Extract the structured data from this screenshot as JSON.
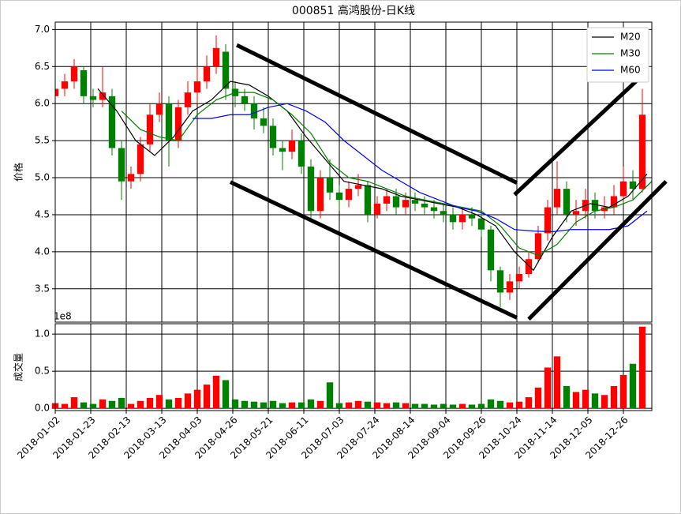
{
  "chart_data": {
    "type": "candlestick",
    "title": "000851 高鸿股份-日K线",
    "ylabel": "价格",
    "up_color": "#ff0000",
    "down_color": "#008000",
    "grid": true,
    "legend": "upper right",
    "xlim": [
      0,
      252
    ],
    "xticks": [
      {
        "value": 0,
        "label": "2018-01-02"
      },
      {
        "value": 15,
        "label": "2018-01-23"
      },
      {
        "value": 30,
        "label": "2018-02-13"
      },
      {
        "value": 45,
        "label": "2018-03-13"
      },
      {
        "value": 60,
        "label": "2018-04-03"
      },
      {
        "value": 75,
        "label": "2018-04-26"
      },
      {
        "value": 90,
        "label": "2018-05-21"
      },
      {
        "value": 105,
        "label": "2018-06-11"
      },
      {
        "value": 120,
        "label": "2018-07-03"
      },
      {
        "value": 135,
        "label": "2018-07-24"
      },
      {
        "value": 150,
        "label": "2018-08-14"
      },
      {
        "value": 165,
        "label": "2018-09-04"
      },
      {
        "value": 180,
        "label": "2018-09-26"
      },
      {
        "value": 195,
        "label": "2018-10-24"
      },
      {
        "value": 210,
        "label": "2018-11-14"
      },
      {
        "value": 225,
        "label": "2018-12-05"
      },
      {
        "value": 240,
        "label": "2018-12-26"
      }
    ],
    "ylim": [
      3.05,
      7.1
    ],
    "yticks": [
      3.5,
      {
        "value": 4,
        "label": "4.0"
      },
      4.5,
      {
        "value": 5,
        "label": "5.0"
      },
      5.5,
      {
        "value": 6,
        "label": "6.0"
      },
      6.5,
      {
        "value": 7,
        "label": "7.0"
      }
    ],
    "x": [
      0,
      4,
      8,
      12,
      16,
      20,
      24,
      28,
      32,
      36,
      40,
      44,
      48,
      52,
      56,
      60,
      64,
      68,
      72,
      76,
      80,
      84,
      88,
      92,
      96,
      100,
      104,
      108,
      112,
      116,
      120,
      124,
      128,
      132,
      136,
      140,
      144,
      148,
      152,
      156,
      160,
      164,
      168,
      172,
      176,
      180,
      184,
      188,
      192,
      196,
      200,
      204,
      208,
      212,
      216,
      220,
      224,
      228,
      232,
      236,
      240,
      244,
      248
    ],
    "open": [
      6.1,
      6.2,
      6.3,
      6.45,
      6.1,
      6.05,
      6.1,
      5.4,
      4.95,
      5.05,
      5.45,
      5.85,
      6.0,
      5.5,
      5.95,
      6.15,
      6.3,
      6.5,
      6.7,
      6.2,
      6.1,
      6.0,
      5.8,
      5.7,
      5.4,
      5.35,
      5.5,
      5.15,
      4.55,
      5.0,
      4.8,
      4.7,
      4.85,
      4.9,
      4.5,
      4.65,
      4.75,
      4.6,
      4.7,
      4.65,
      4.6,
      4.55,
      4.5,
      4.4,
      4.5,
      4.45,
      4.3,
      3.75,
      3.45,
      3.6,
      3.7,
      3.9,
      4.25,
      4.6,
      4.85,
      4.5,
      4.55,
      4.7,
      4.55,
      4.6,
      4.75,
      4.95,
      4.85
    ],
    "high": [
      6.3,
      6.4,
      6.6,
      6.5,
      6.2,
      6.5,
      6.2,
      5.5,
      5.15,
      5.55,
      6.0,
      6.15,
      6.1,
      6.05,
      6.3,
      6.5,
      6.65,
      6.92,
      6.8,
      6.3,
      6.2,
      6.1,
      5.95,
      5.8,
      5.5,
      5.65,
      5.6,
      5.25,
      5.1,
      5.25,
      4.9,
      4.95,
      5.05,
      4.95,
      4.75,
      4.85,
      4.85,
      4.8,
      4.8,
      4.75,
      4.7,
      4.65,
      4.6,
      4.6,
      4.6,
      4.55,
      4.35,
      3.8,
      3.7,
      3.8,
      4.0,
      4.35,
      4.7,
      5.22,
      4.95,
      4.7,
      4.85,
      4.8,
      4.75,
      4.9,
      5.15,
      5.1,
      6.2
    ],
    "low": [
      6.0,
      6.1,
      6.2,
      6.0,
      5.95,
      5.95,
      5.3,
      4.7,
      4.85,
      4.95,
      5.35,
      5.75,
      5.15,
      5.4,
      5.85,
      6.0,
      6.2,
      6.4,
      6.05,
      5.95,
      5.9,
      5.65,
      5.6,
      5.3,
      5.1,
      5.25,
      5.05,
      4.4,
      4.45,
      4.7,
      4.55,
      4.6,
      4.75,
      4.4,
      4.45,
      4.55,
      4.5,
      4.5,
      4.55,
      4.5,
      4.45,
      4.4,
      4.3,
      4.3,
      4.35,
      4.2,
      3.6,
      3.25,
      3.35,
      3.5,
      3.65,
      3.85,
      4.15,
      4.5,
      4.4,
      4.35,
      4.45,
      4.45,
      4.45,
      4.5,
      4.65,
      4.7,
      4.8
    ],
    "close": [
      6.2,
      6.3,
      6.5,
      6.1,
      6.05,
      6.15,
      5.4,
      4.95,
      5.05,
      5.45,
      5.85,
      6.0,
      5.5,
      5.95,
      6.15,
      6.3,
      6.5,
      6.75,
      6.2,
      6.1,
      6.0,
      5.8,
      5.7,
      5.4,
      5.35,
      5.5,
      5.15,
      4.55,
      5.0,
      4.8,
      4.7,
      4.85,
      4.9,
      4.5,
      4.65,
      4.75,
      4.6,
      4.7,
      4.65,
      4.6,
      4.55,
      4.5,
      4.4,
      4.5,
      4.45,
      4.3,
      3.75,
      3.45,
      3.6,
      3.7,
      3.9,
      4.25,
      4.6,
      4.85,
      4.5,
      4.55,
      4.7,
      4.55,
      4.6,
      4.75,
      4.95,
      4.85,
      5.85
    ],
    "series": [
      {
        "name": "M20",
        "color": "#000000",
        "x": [
          18,
          26,
          34,
          42,
          50,
          58,
          66,
          74,
          82,
          90,
          98,
          106,
          114,
          122,
          130,
          138,
          146,
          154,
          162,
          170,
          178,
          186,
          194,
          202,
          210,
          218,
          226,
          234,
          242,
          250
        ],
        "values": [
          6.2,
          5.9,
          5.5,
          5.3,
          5.55,
          5.9,
          6.05,
          6.3,
          6.25,
          6.1,
          5.9,
          5.55,
          5.25,
          4.95,
          4.9,
          4.85,
          4.75,
          4.7,
          4.65,
          4.6,
          4.5,
          4.35,
          4.0,
          3.75,
          4.2,
          4.55,
          4.65,
          4.6,
          4.75,
          5.05
        ]
      },
      {
        "name": "M30",
        "color": "#008000",
        "x": [
          28,
          36,
          44,
          52,
          60,
          68,
          76,
          84,
          92,
          100,
          108,
          116,
          124,
          132,
          140,
          148,
          156,
          164,
          172,
          180,
          188,
          196,
          204,
          212,
          220,
          228,
          236,
          244,
          252
        ],
        "values": [
          5.9,
          5.65,
          5.55,
          5.5,
          5.85,
          6.05,
          6.15,
          6.15,
          6.05,
          5.85,
          5.6,
          5.2,
          5.0,
          4.95,
          4.85,
          4.75,
          4.7,
          4.65,
          4.6,
          4.55,
          4.35,
          4.05,
          3.95,
          4.1,
          4.4,
          4.55,
          4.6,
          4.7,
          4.95
        ]
      },
      {
        "name": "M60",
        "color": "#0000ff",
        "x": [
          58,
          66,
          74,
          82,
          90,
          98,
          106,
          114,
          122,
          130,
          138,
          146,
          154,
          162,
          170,
          178,
          186,
          194,
          202,
          210,
          218,
          226,
          234,
          242,
          250
        ],
        "values": [
          5.8,
          5.8,
          5.85,
          5.85,
          5.95,
          6.0,
          5.9,
          5.75,
          5.5,
          5.3,
          5.1,
          4.95,
          4.8,
          4.7,
          4.6,
          4.55,
          4.45,
          4.3,
          4.28,
          4.27,
          4.3,
          4.3,
          4.3,
          4.35,
          4.55
        ]
      }
    ],
    "trend_lines": [
      {
        "x": [
          76.7,
          195
        ],
        "y": [
          6.79,
          4.93
        ]
      },
      {
        "x": [
          74,
          195
        ],
        "y": [
          4.94,
          3.11
        ]
      },
      {
        "x": [
          194,
          250
        ],
        "y": [
          4.77,
          6.44
        ]
      },
      {
        "x": [
          200,
          258
        ],
        "y": [
          3.09,
          4.95
        ]
      }
    ],
    "volume": {
      "ylabel": "成交量",
      "offset_label": "1e8",
      "ylim": [
        -0.03,
        1.14
      ],
      "yticks": [
        {
          "value": 0,
          "label": "0.0"
        },
        0.5,
        {
          "value": 1,
          "label": "1.0"
        }
      ],
      "values": [
        0.07,
        0.06,
        0.15,
        0.08,
        0.06,
        0.12,
        0.1,
        0.14,
        0.06,
        0.1,
        0.14,
        0.18,
        0.12,
        0.14,
        0.2,
        0.25,
        0.32,
        0.44,
        0.38,
        0.12,
        0.1,
        0.09,
        0.08,
        0.1,
        0.07,
        0.08,
        0.08,
        0.12,
        0.1,
        0.35,
        0.07,
        0.08,
        0.1,
        0.09,
        0.08,
        0.07,
        0.08,
        0.07,
        0.06,
        0.06,
        0.05,
        0.06,
        0.05,
        0.06,
        0.05,
        0.06,
        0.12,
        0.1,
        0.08,
        0.09,
        0.15,
        0.28,
        0.55,
        0.7,
        0.3,
        0.22,
        0.25,
        0.2,
        0.18,
        0.3,
        0.45,
        0.6,
        1.1
      ]
    }
  }
}
